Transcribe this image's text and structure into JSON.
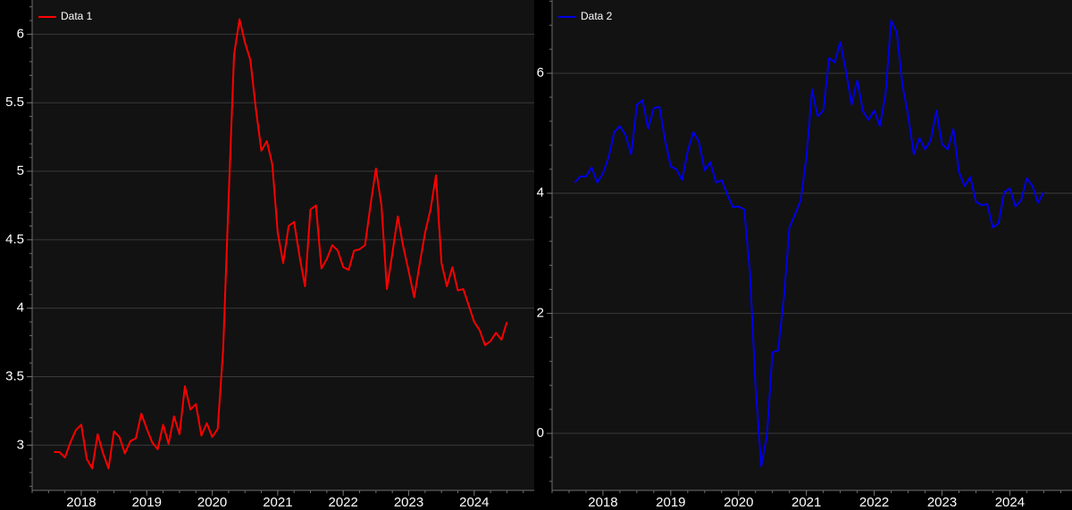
{
  "chart_data": [
    {
      "type": "line",
      "series": [
        {
          "name": "Data 1",
          "color": "#ff0000",
          "points": [
            [
              "2017-08",
              2.95
            ],
            [
              "2017-09",
              2.95
            ],
            [
              "2017-10",
              2.91
            ],
            [
              "2017-11",
              3.02
            ],
            [
              "2017-12",
              3.11
            ],
            [
              "2018-01",
              3.15
            ],
            [
              "2018-02",
              2.9
            ],
            [
              "2018-03",
              2.83
            ],
            [
              "2018-04",
              3.08
            ],
            [
              "2018-05",
              2.94
            ],
            [
              "2018-06",
              2.83
            ],
            [
              "2018-07",
              3.1
            ],
            [
              "2018-08",
              3.06
            ],
            [
              "2018-09",
              2.94
            ],
            [
              "2018-10",
              3.03
            ],
            [
              "2018-11",
              3.05
            ],
            [
              "2018-12",
              3.23
            ],
            [
              "2019-01",
              3.12
            ],
            [
              "2019-02",
              3.02
            ],
            [
              "2019-03",
              2.97
            ],
            [
              "2019-04",
              3.15
            ],
            [
              "2019-05",
              3.01
            ],
            [
              "2019-06",
              3.21
            ],
            [
              "2019-07",
              3.08
            ],
            [
              "2019-08",
              3.43
            ],
            [
              "2019-09",
              3.26
            ],
            [
              "2019-10",
              3.3
            ],
            [
              "2019-11",
              3.07
            ],
            [
              "2019-12",
              3.16
            ],
            [
              "2020-01",
              3.06
            ],
            [
              "2020-02",
              3.12
            ],
            [
              "2020-03",
              3.7
            ],
            [
              "2020-04",
              4.8
            ],
            [
              "2020-05",
              5.85
            ],
            [
              "2020-06",
              6.11
            ],
            [
              "2020-07",
              5.94
            ],
            [
              "2020-08",
              5.81
            ],
            [
              "2020-09",
              5.45
            ],
            [
              "2020-10",
              5.15
            ],
            [
              "2020-11",
              5.22
            ],
            [
              "2020-12",
              5.05
            ],
            [
              "2021-01",
              4.55
            ],
            [
              "2021-02",
              4.33
            ],
            [
              "2021-03",
              4.6
            ],
            [
              "2021-04",
              4.63
            ],
            [
              "2021-05",
              4.38
            ],
            [
              "2021-06",
              4.16
            ],
            [
              "2021-07",
              4.72
            ],
            [
              "2021-08",
              4.75
            ],
            [
              "2021-09",
              4.29
            ],
            [
              "2021-10",
              4.36
            ],
            [
              "2021-11",
              4.46
            ],
            [
              "2021-12",
              4.42
            ],
            [
              "2022-01",
              4.3
            ],
            [
              "2022-02",
              4.28
            ],
            [
              "2022-03",
              4.42
            ],
            [
              "2022-04",
              4.43
            ],
            [
              "2022-05",
              4.46
            ],
            [
              "2022-06",
              4.75
            ],
            [
              "2022-07",
              5.02
            ],
            [
              "2022-08",
              4.75
            ],
            [
              "2022-09",
              4.14
            ],
            [
              "2022-10",
              4.4
            ],
            [
              "2022-11",
              4.67
            ],
            [
              "2022-12",
              4.45
            ],
            [
              "2023-01",
              4.27
            ],
            [
              "2023-02",
              4.08
            ],
            [
              "2023-03",
              4.32
            ],
            [
              "2023-04",
              4.55
            ],
            [
              "2023-05",
              4.72
            ],
            [
              "2023-06",
              4.97
            ],
            [
              "2023-07",
              4.33
            ],
            [
              "2023-08",
              4.16
            ],
            [
              "2023-09",
              4.3
            ],
            [
              "2023-10",
              4.13
            ],
            [
              "2023-11",
              4.14
            ],
            [
              "2023-12",
              4.02
            ],
            [
              "2024-01",
              3.9
            ],
            [
              "2024-02",
              3.84
            ],
            [
              "2024-03",
              3.73
            ],
            [
              "2024-04",
              3.76
            ],
            [
              "2024-05",
              3.82
            ],
            [
              "2024-06",
              3.77
            ],
            [
              "2024-07",
              3.9
            ]
          ]
        }
      ],
      "x_ticks": [
        "2018",
        "2019",
        "2020",
        "2021",
        "2022",
        "2023",
        "2024"
      ],
      "y_ticks": [
        3,
        3.5,
        4,
        4.5,
        5,
        5.5,
        6
      ],
      "y_tick_labels": [
        "3",
        "3.5",
        "4",
        "4.5",
        "5",
        "5.5",
        "6"
      ],
      "ylim": [
        2.67,
        6.25
      ],
      "xlim": [
        "2017-04",
        "2024-12"
      ],
      "grid": "horizontal",
      "legend": "top-left"
    },
    {
      "type": "line",
      "series": [
        {
          "name": "Data 2",
          "color": "#0000e6",
          "points": [
            [
              "2017-08",
              4.18
            ],
            [
              "2017-09",
              4.28
            ],
            [
              "2017-10",
              4.28
            ],
            [
              "2017-11",
              4.43
            ],
            [
              "2017-12",
              4.18
            ],
            [
              "2018-01",
              4.33
            ],
            [
              "2018-02",
              4.6
            ],
            [
              "2018-03",
              5.02
            ],
            [
              "2018-04",
              5.12
            ],
            [
              "2018-05",
              4.97
            ],
            [
              "2018-06",
              4.65
            ],
            [
              "2018-07",
              5.47
            ],
            [
              "2018-08",
              5.55
            ],
            [
              "2018-09",
              5.08
            ],
            [
              "2018-10",
              5.42
            ],
            [
              "2018-11",
              5.44
            ],
            [
              "2018-12",
              4.88
            ],
            [
              "2019-01",
              4.45
            ],
            [
              "2019-02",
              4.4
            ],
            [
              "2019-03",
              4.22
            ],
            [
              "2019-04",
              4.7
            ],
            [
              "2019-05",
              5.02
            ],
            [
              "2019-06",
              4.85
            ],
            [
              "2019-07",
              4.38
            ],
            [
              "2019-08",
              4.52
            ],
            [
              "2019-09",
              4.18
            ],
            [
              "2019-10",
              4.22
            ],
            [
              "2019-11",
              3.98
            ],
            [
              "2019-12",
              3.77
            ],
            [
              "2020-01",
              3.78
            ],
            [
              "2020-02",
              3.73
            ],
            [
              "2020-03",
              2.7
            ],
            [
              "2020-04",
              0.8
            ],
            [
              "2020-05",
              -0.55
            ],
            [
              "2020-06",
              -0.05
            ],
            [
              "2020-07",
              1.35
            ],
            [
              "2020-08",
              1.38
            ],
            [
              "2020-09",
              2.25
            ],
            [
              "2020-10",
              3.43
            ],
            [
              "2020-11",
              3.65
            ],
            [
              "2020-12",
              3.88
            ],
            [
              "2021-01",
              4.6
            ],
            [
              "2021-02",
              5.73
            ],
            [
              "2021-03",
              5.28
            ],
            [
              "2021-04",
              5.38
            ],
            [
              "2021-05",
              6.25
            ],
            [
              "2021-06",
              6.18
            ],
            [
              "2021-07",
              6.52
            ],
            [
              "2021-08",
              6.03
            ],
            [
              "2021-09",
              5.48
            ],
            [
              "2021-10",
              5.88
            ],
            [
              "2021-11",
              5.37
            ],
            [
              "2021-12",
              5.22
            ],
            [
              "2022-01",
              5.38
            ],
            [
              "2022-02",
              5.12
            ],
            [
              "2022-03",
              5.65
            ],
            [
              "2022-04",
              6.88
            ],
            [
              "2022-05",
              6.68
            ],
            [
              "2022-06",
              5.8
            ],
            [
              "2022-07",
              5.3
            ],
            [
              "2022-08",
              4.65
            ],
            [
              "2022-09",
              4.92
            ],
            [
              "2022-10",
              4.73
            ],
            [
              "2022-11",
              4.88
            ],
            [
              "2022-12",
              5.38
            ],
            [
              "2023-01",
              4.82
            ],
            [
              "2023-02",
              4.73
            ],
            [
              "2023-03",
              5.07
            ],
            [
              "2023-04",
              4.35
            ],
            [
              "2023-05",
              4.12
            ],
            [
              "2023-06",
              4.27
            ],
            [
              "2023-07",
              3.86
            ],
            [
              "2023-08",
              3.8
            ],
            [
              "2023-09",
              3.82
            ],
            [
              "2023-10",
              3.43
            ],
            [
              "2023-11",
              3.5
            ],
            [
              "2023-12",
              4.02
            ],
            [
              "2024-01",
              4.08
            ],
            [
              "2024-02",
              3.78
            ],
            [
              "2024-03",
              3.88
            ],
            [
              "2024-04",
              4.25
            ],
            [
              "2024-05",
              4.12
            ],
            [
              "2024-06",
              3.84
            ],
            [
              "2024-07",
              4.02
            ]
          ]
        }
      ],
      "x_ticks": [
        "2018",
        "2019",
        "2020",
        "2021",
        "2022",
        "2023",
        "2024"
      ],
      "y_ticks": [
        0,
        2,
        4,
        6
      ],
      "y_tick_labels": [
        "0",
        "2",
        "4",
        "6"
      ],
      "ylim": [
        -0.95,
        7.22
      ],
      "xlim": [
        "2017-04",
        "2024-12"
      ],
      "grid": "horizontal",
      "legend": "top-left"
    }
  ],
  "colors": {
    "page_background": "#000000",
    "plot_background": "#121212",
    "grid": "#3a3a3a",
    "axis": "#6f6f6f",
    "text": "#ffffff"
  }
}
